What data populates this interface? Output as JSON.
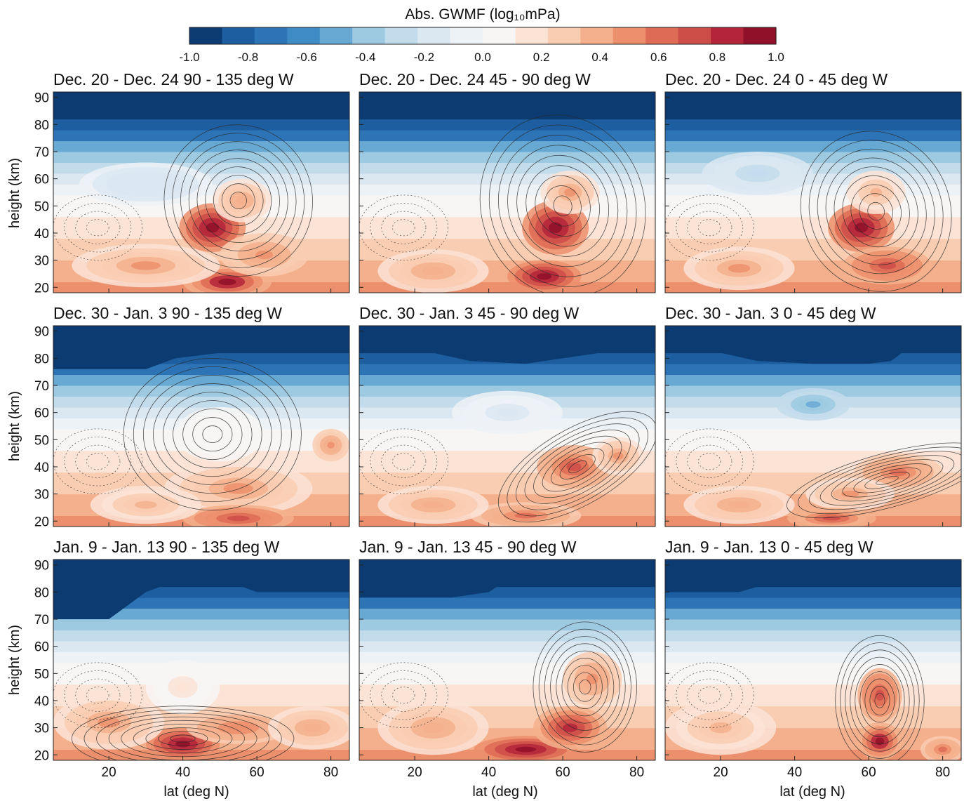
{
  "chart_data": {
    "type": "heatmap",
    "colorbar": {
      "title": "Abs. GWMF (log₁₀mPa)",
      "ticks": [
        "-1.0",
        "-0.8",
        "-0.6",
        "-0.4",
        "-0.2",
        "0.0",
        "0.2",
        "0.4",
        "0.6",
        "0.8",
        "1.0"
      ],
      "range": [
        -1.0,
        1.0
      ],
      "colors": [
        "#0b3b70",
        "#1d5ea0",
        "#2c74b6",
        "#3f8bc5",
        "#68a9d3",
        "#9ecae1",
        "#c3dcec",
        "#dbe8f2",
        "#edf2f6",
        "#f7f6f5",
        "#fbe3d6",
        "#f9cdb2",
        "#f4b08c",
        "#ec8f6c",
        "#de6b55",
        "#cc4c48",
        "#b4253a",
        "#8f1028"
      ]
    },
    "xlabel": "lat (deg N)",
    "ylabel": "height (km)",
    "xlim": [
      5,
      85
    ],
    "ylim": [
      18,
      92
    ],
    "xticks": [
      "20",
      "40",
      "60",
      "80"
    ],
    "yticks": [
      "20",
      "30",
      "40",
      "50",
      "60",
      "70",
      "80",
      "90"
    ],
    "periods": [
      "Dec. 20 - Dec. 24",
      "Dec. 30 - Jan. 3",
      "Jan. 9 - Jan. 13"
    ],
    "sectors": [
      "90 - 135 deg W",
      "45 - 90 deg W",
      "0 - 45 deg W"
    ],
    "panels": [
      {
        "period": 0,
        "sector": 0,
        "title": "Dec. 20 - Dec. 24     90 - 135 deg W",
        "top_cutoff": [
          {
            "lat": 5,
            "km": 85
          },
          {
            "lat": 25,
            "km": 85
          },
          {
            "lat": 40,
            "km": 85
          },
          {
            "lat": 46,
            "km": 86
          },
          {
            "lat": 58,
            "km": 91
          },
          {
            "lat": 85,
            "km": 91
          }
        ],
        "features": [
          {
            "lat": 48,
            "km": 42,
            "v": 0.95,
            "w": 9,
            "h": 9
          },
          {
            "lat": 52,
            "km": 22,
            "v": 0.9,
            "w": 12,
            "h": 6
          },
          {
            "lat": 30,
            "km": 28,
            "v": 0.45,
            "w": 20,
            "h": 8
          },
          {
            "lat": 62,
            "km": 32,
            "v": 0.5,
            "w": 12,
            "h": 8
          },
          {
            "lat": 56,
            "km": 52,
            "v": 0.4,
            "w": 8,
            "h": 8
          },
          {
            "lat": 30,
            "km": 58,
            "v": -0.2,
            "w": 18,
            "h": 8
          }
        ],
        "contours": [
          {
            "lat": 55,
            "km": 52,
            "a": 10,
            "b": 14,
            "rot": -20
          }
        ]
      },
      {
        "period": 0,
        "sector": 1,
        "title": "Dec. 20 - Dec. 24     45 - 90 deg W",
        "top_cutoff": [
          {
            "lat": 5,
            "km": 85
          },
          {
            "lat": 30,
            "km": 85
          },
          {
            "lat": 40,
            "km": 85
          },
          {
            "lat": 48,
            "km": 87
          },
          {
            "lat": 56,
            "km": 91
          },
          {
            "lat": 85,
            "km": 91
          }
        ],
        "features": [
          {
            "lat": 58,
            "km": 42,
            "v": 1.0,
            "w": 9,
            "h": 10
          },
          {
            "lat": 55,
            "km": 24,
            "v": 0.95,
            "w": 10,
            "h": 6
          },
          {
            "lat": 25,
            "km": 26,
            "v": 0.4,
            "w": 15,
            "h": 8
          },
          {
            "lat": 62,
            "km": 55,
            "v": 0.45,
            "w": 8,
            "h": 8
          }
        ],
        "contours": [
          {
            "lat": 60,
            "km": 50,
            "a": 11,
            "b": 17,
            "rot": -20
          }
        ]
      },
      {
        "period": 0,
        "sector": 2,
        "title": "Dec. 20 - Dec. 24     0 - 45 deg W",
        "top_cutoff": [
          {
            "lat": 5,
            "km": 85
          },
          {
            "lat": 25,
            "km": 85
          },
          {
            "lat": 40,
            "km": 85
          },
          {
            "lat": 47,
            "km": 87
          },
          {
            "lat": 55,
            "km": 91
          },
          {
            "lat": 85,
            "km": 91
          }
        ],
        "features": [
          {
            "lat": 58,
            "km": 42,
            "v": 0.95,
            "w": 9,
            "h": 9
          },
          {
            "lat": 65,
            "km": 28,
            "v": 0.75,
            "w": 12,
            "h": 7
          },
          {
            "lat": 25,
            "km": 27,
            "v": 0.45,
            "w": 15,
            "h": 8
          },
          {
            "lat": 62,
            "km": 55,
            "v": 0.35,
            "w": 8,
            "h": 8
          },
          {
            "lat": 30,
            "km": 62,
            "v": -0.3,
            "w": 15,
            "h": 8
          }
        ],
        "contours": [
          {
            "lat": 62,
            "km": 48,
            "a": 10,
            "b": 15,
            "rot": -25
          }
        ]
      },
      {
        "period": 1,
        "sector": 0,
        "title": "Dec. 30 - Jan. 3     90 - 135 deg W",
        "top_cutoff": [
          {
            "lat": 5,
            "km": 76
          },
          {
            "lat": 20,
            "km": 76
          },
          {
            "lat": 30,
            "km": 76
          },
          {
            "lat": 38,
            "km": 80
          },
          {
            "lat": 50,
            "km": 82
          },
          {
            "lat": 85,
            "km": 82
          }
        ],
        "features": [
          {
            "lat": 55,
            "km": 32,
            "v": 0.45,
            "w": 20,
            "h": 10
          },
          {
            "lat": 80,
            "km": 48,
            "v": 0.5,
            "w": 5,
            "h": 6
          },
          {
            "lat": 55,
            "km": 21,
            "v": 0.75,
            "w": 15,
            "h": 5
          },
          {
            "lat": 30,
            "km": 26,
            "v": 0.35,
            "w": 15,
            "h": 7
          },
          {
            "lat": 50,
            "km": 52,
            "v": 0.1,
            "w": 12,
            "h": 10
          }
        ],
        "contours": [
          {
            "lat": 48,
            "km": 52,
            "a": 12,
            "b": 14,
            "rot": 0
          }
        ]
      },
      {
        "period": 1,
        "sector": 1,
        "title": "Dec. 30 - Jan. 3     45 - 90 deg W",
        "top_cutoff": [
          {
            "lat": 5,
            "km": 82
          },
          {
            "lat": 25,
            "km": 82
          },
          {
            "lat": 35,
            "km": 79
          },
          {
            "lat": 50,
            "km": 78
          },
          {
            "lat": 60,
            "km": 80
          },
          {
            "lat": 70,
            "km": 82
          },
          {
            "lat": 85,
            "km": 83
          }
        ],
        "features": [
          {
            "lat": 63,
            "km": 40,
            "v": 0.7,
            "w": 10,
            "h": 8
          },
          {
            "lat": 75,
            "km": 44,
            "v": 0.45,
            "w": 7,
            "h": 7
          },
          {
            "lat": 50,
            "km": 22,
            "v": 0.6,
            "w": 15,
            "h": 5
          },
          {
            "lat": 25,
            "km": 26,
            "v": 0.4,
            "w": 15,
            "h": 7
          },
          {
            "lat": 45,
            "km": 60,
            "v": -0.15,
            "w": 15,
            "h": 8
          }
        ],
        "contours": [
          {
            "lat": 64,
            "km": 40,
            "a": 12,
            "b": 7,
            "rot": -30
          }
        ]
      },
      {
        "period": 1,
        "sector": 2,
        "title": "Dec. 30 - Jan. 3     0 - 45 deg W",
        "top_cutoff": [
          {
            "lat": 5,
            "km": 82
          },
          {
            "lat": 20,
            "km": 82
          },
          {
            "lat": 30,
            "km": 79
          },
          {
            "lat": 45,
            "km": 78
          },
          {
            "lat": 60,
            "km": 78
          },
          {
            "lat": 66,
            "km": 79
          },
          {
            "lat": 70,
            "km": 83
          },
          {
            "lat": 85,
            "km": 83
          }
        ],
        "features": [
          {
            "lat": 68,
            "km": 38,
            "v": 0.6,
            "w": 12,
            "h": 7
          },
          {
            "lat": 55,
            "km": 30,
            "v": 0.45,
            "w": 12,
            "h": 6
          },
          {
            "lat": 50,
            "km": 21,
            "v": 0.7,
            "w": 12,
            "h": 4
          },
          {
            "lat": 25,
            "km": 26,
            "v": 0.4,
            "w": 15,
            "h": 7
          },
          {
            "lat": 45,
            "km": 63,
            "v": -0.5,
            "w": 10,
            "h": 6
          }
        ],
        "contours": [
          {
            "lat": 65,
            "km": 35,
            "a": 14,
            "b": 5,
            "rot": -15
          }
        ]
      },
      {
        "period": 2,
        "sector": 0,
        "title": "Jan. 9 - Jan. 13     90 - 135 deg W",
        "top_cutoff": [
          {
            "lat": 5,
            "km": 70
          },
          {
            "lat": 20,
            "km": 70
          },
          {
            "lat": 25,
            "km": 75
          },
          {
            "lat": 30,
            "km": 80
          },
          {
            "lat": 40,
            "km": 85
          },
          {
            "lat": 50,
            "km": 85
          },
          {
            "lat": 60,
            "km": 80
          },
          {
            "lat": 85,
            "km": 80
          }
        ],
        "features": [
          {
            "lat": 40,
            "km": 24,
            "v": 1.0,
            "w": 10,
            "h": 6
          },
          {
            "lat": 55,
            "km": 30,
            "v": 0.55,
            "w": 14,
            "h": 6
          },
          {
            "lat": 20,
            "km": 32,
            "v": 0.45,
            "w": 15,
            "h": 10
          },
          {
            "lat": 75,
            "km": 30,
            "v": 0.4,
            "w": 12,
            "h": 8
          },
          {
            "lat": 40,
            "km": 45,
            "v": 0.15,
            "w": 10,
            "h": 10
          }
        ],
        "contours": [
          {
            "lat": 40,
            "km": 26,
            "a": 15,
            "b": 6,
            "rot": 0
          }
        ]
      },
      {
        "period": 2,
        "sector": 1,
        "title": "Jan. 9 - Jan. 13     45 - 90 deg W",
        "top_cutoff": [
          {
            "lat": 5,
            "km": 78
          },
          {
            "lat": 30,
            "km": 78
          },
          {
            "lat": 40,
            "km": 80
          },
          {
            "lat": 48,
            "km": 87
          },
          {
            "lat": 60,
            "km": 87
          },
          {
            "lat": 70,
            "km": 85
          },
          {
            "lat": 85,
            "km": 85
          }
        ],
        "features": [
          {
            "lat": 50,
            "km": 22,
            "v": 1.0,
            "w": 14,
            "h": 5
          },
          {
            "lat": 62,
            "km": 30,
            "v": 0.85,
            "w": 10,
            "h": 8
          },
          {
            "lat": 68,
            "km": 48,
            "v": 0.5,
            "w": 8,
            "h": 10
          },
          {
            "lat": 25,
            "km": 30,
            "v": 0.4,
            "w": 15,
            "h": 10
          }
        ],
        "contours": [
          {
            "lat": 66,
            "km": 45,
            "a": 7,
            "b": 12,
            "rot": 0
          }
        ]
      },
      {
        "period": 2,
        "sector": 2,
        "title": "Jan. 9 - Jan. 13     0 - 45 deg W",
        "top_cutoff": [
          {
            "lat": 5,
            "km": 80
          },
          {
            "lat": 25,
            "km": 80
          },
          {
            "lat": 35,
            "km": 84
          },
          {
            "lat": 50,
            "km": 85
          },
          {
            "lat": 60,
            "km": 85
          },
          {
            "lat": 68,
            "km": 83
          },
          {
            "lat": 85,
            "km": 83
          }
        ],
        "features": [
          {
            "lat": 63,
            "km": 42,
            "v": 0.75,
            "w": 6,
            "h": 10
          },
          {
            "lat": 63,
            "km": 25,
            "v": 0.9,
            "w": 6,
            "h": 7
          },
          {
            "lat": 20,
            "km": 30,
            "v": 0.35,
            "w": 15,
            "h": 10
          },
          {
            "lat": 80,
            "km": 22,
            "v": 0.6,
            "w": 6,
            "h": 5
          }
        ],
        "contours": [
          {
            "lat": 63,
            "km": 40,
            "a": 6,
            "b": 12,
            "rot": 0
          }
        ]
      }
    ]
  }
}
